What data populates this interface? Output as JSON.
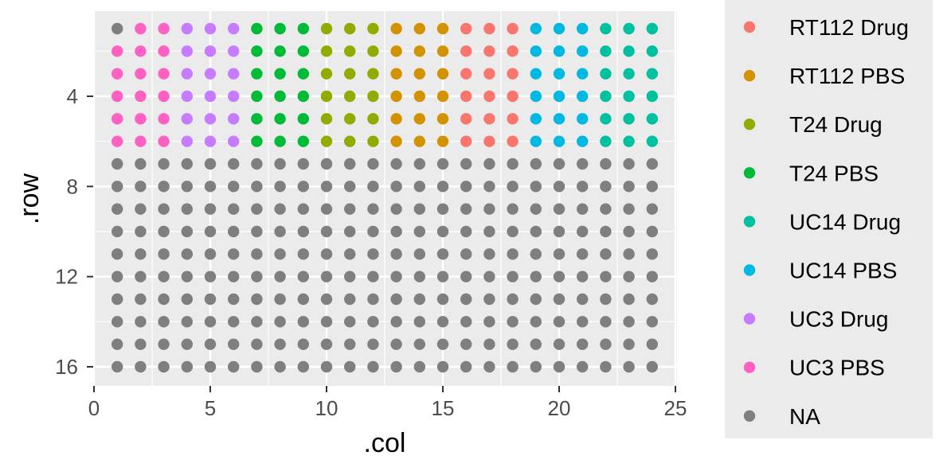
{
  "chart_data": {
    "type": "scatter",
    "xlabel": ".col",
    "ylabel": ".row",
    "xlim": [
      0,
      25
    ],
    "ylim": [
      16.5,
      0.5
    ],
    "y_reversed": true,
    "x_ticks": [
      0,
      5,
      10,
      15,
      20,
      25
    ],
    "y_ticks": [
      4,
      8,
      12,
      16
    ],
    "grid": true,
    "legend_position": "right",
    "categories": [
      "RT112 Drug",
      "RT112 PBS",
      "T24 Drug",
      "T24 PBS",
      "UC14 Drug",
      "UC14 PBS",
      "UC3 Drug",
      "UC3 PBS",
      "NA"
    ],
    "colors": {
      "RT112 Drug": "#F8766D",
      "RT112 PBS": "#D39200",
      "T24 Drug": "#93AA00",
      "T24 PBS": "#00BA38",
      "UC14 Drug": "#00C19F",
      "UC14 PBS": "#00B9E3",
      "UC3 Drug": "#C77CFF",
      "UC3 PBS": "#FF61C3",
      "NA": "#7F7F7F"
    },
    "grid_size": {
      "rows": 16,
      "cols": 24
    },
    "row_blocks": [
      {
        "rows": [
          1,
          1
        ],
        "cols": [
          1,
          1
        ],
        "category": "NA"
      },
      {
        "rows": [
          1,
          1
        ],
        "cols": [
          2,
          3
        ],
        "category": "UC3 PBS"
      },
      {
        "rows": [
          2,
          6
        ],
        "cols": [
          1,
          3
        ],
        "category": "UC3 PBS"
      },
      {
        "rows": [
          1,
          6
        ],
        "cols": [
          4,
          6
        ],
        "category": "UC3 Drug"
      },
      {
        "rows": [
          1,
          6
        ],
        "cols": [
          7,
          9
        ],
        "category": "T24 PBS"
      },
      {
        "rows": [
          1,
          6
        ],
        "cols": [
          10,
          12
        ],
        "category": "T24 Drug"
      },
      {
        "rows": [
          1,
          6
        ],
        "cols": [
          13,
          15
        ],
        "category": "RT112 PBS"
      },
      {
        "rows": [
          1,
          6
        ],
        "cols": [
          16,
          18
        ],
        "category": "RT112 Drug"
      },
      {
        "rows": [
          1,
          6
        ],
        "cols": [
          19,
          21
        ],
        "category": "UC14 PBS"
      },
      {
        "rows": [
          1,
          6
        ],
        "cols": [
          22,
          24
        ],
        "category": "UC14 Drug"
      },
      {
        "rows": [
          7,
          16
        ],
        "cols": [
          1,
          24
        ],
        "category": "NA"
      }
    ]
  }
}
